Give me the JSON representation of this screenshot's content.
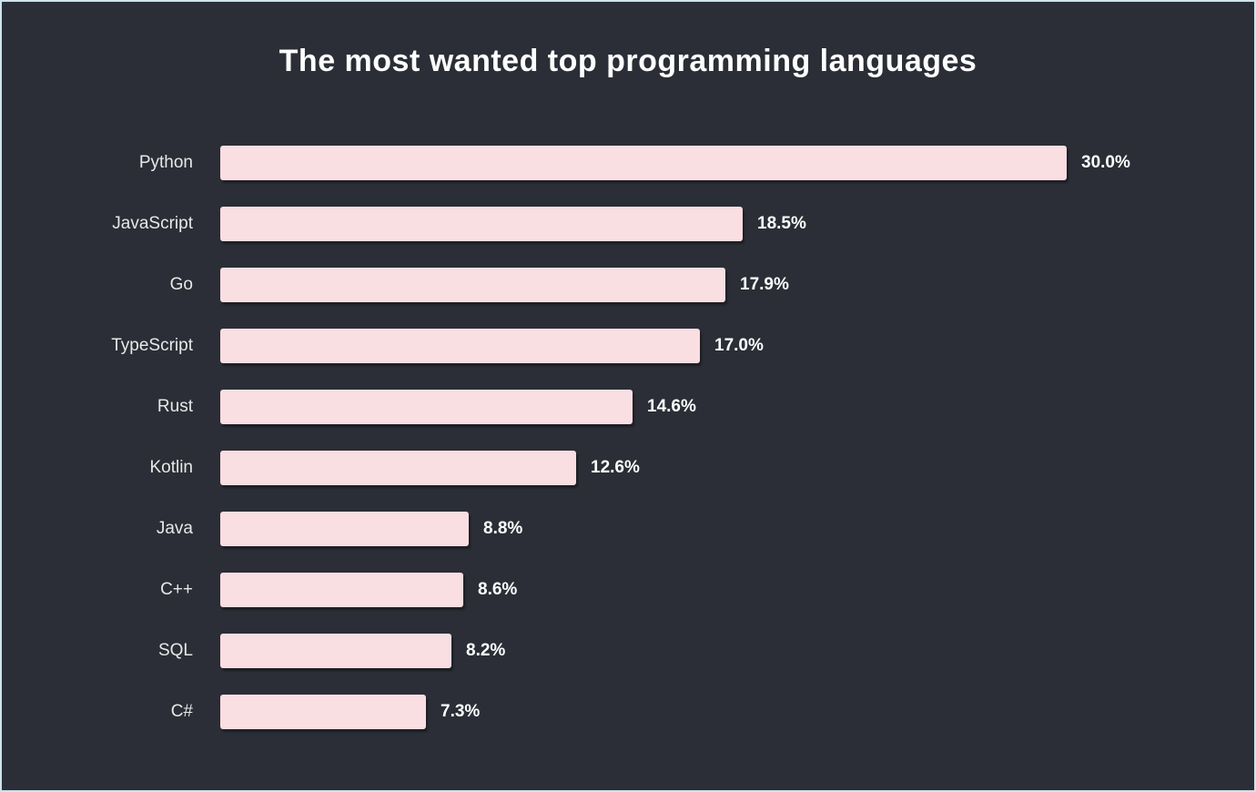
{
  "chart_data": {
    "type": "bar",
    "orientation": "horizontal",
    "title": "The most wanted top programming languages",
    "categories": [
      "Python",
      "JavaScript",
      "Go",
      "TypeScript",
      "Rust",
      "Kotlin",
      "Java",
      "C++",
      "SQL",
      "C#"
    ],
    "values": [
      30.0,
      18.5,
      17.9,
      17.0,
      14.6,
      12.6,
      8.8,
      8.6,
      8.2,
      7.3
    ],
    "value_labels": [
      "30.0%",
      "18.5%",
      "17.9%",
      "17.0%",
      "14.6%",
      "12.6%",
      "8.8%",
      "8.6%",
      "8.2%",
      "7.3%"
    ],
    "xlabel": "",
    "ylabel": "",
    "xlim": [
      0,
      30
    ],
    "grid": false,
    "legend": false,
    "bar_color": "#f9dee2",
    "background_color": "#2b2e36",
    "title_color": "#ffffff",
    "label_color": "#e8e8e8",
    "value_color": "#ffffff"
  }
}
